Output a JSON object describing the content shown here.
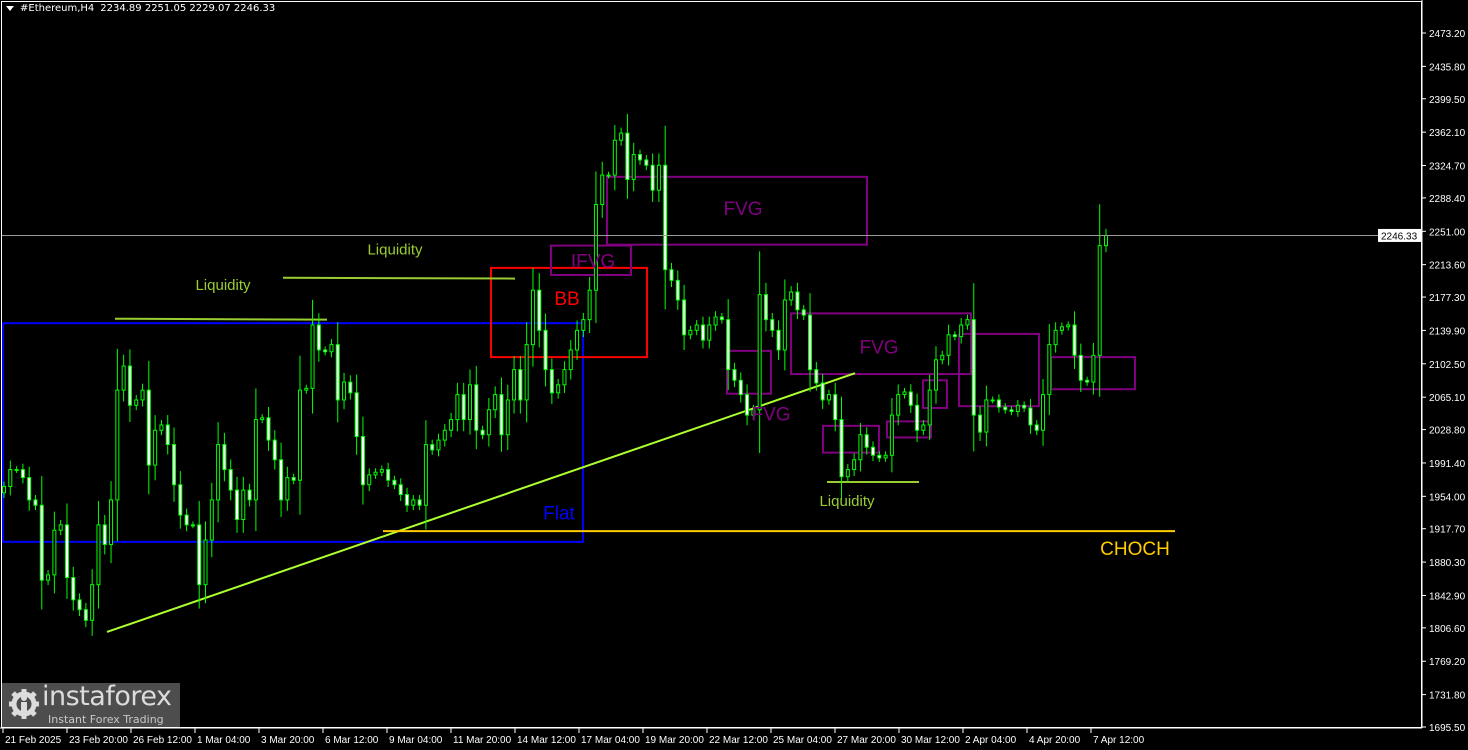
{
  "header": {
    "symbol_tf": "#Ethereum,H4",
    "ohlc": "2234.89 2251.05 2229.07 2246.33"
  },
  "watermark": {
    "brand": "instaforex",
    "tagline": "Instant Forex Trading"
  },
  "colors": {
    "background": "#000000",
    "candle": "#00ff00",
    "axis": "#ffffff",
    "current_price_line": "#9a9a9a",
    "liquidity": "#9acd32",
    "trendline": "#adff2f",
    "fvg": "#800080",
    "bb": "#ff0000",
    "flat": "#0000ff",
    "choch": "#ffcc00"
  },
  "chart_data": {
    "type": "candlestick",
    "symbol": "#Ethereum",
    "timeframe": "H4",
    "last_bar": {
      "open": 2234.89,
      "high": 2251.05,
      "low": 2229.07,
      "close": 2246.33
    },
    "current_price": "2246.33",
    "ylim": [
      1695.5,
      2473.2
    ],
    "grid": false,
    "y_ticks": [
      "2473.20",
      "2435.80",
      "2399.50",
      "2362.10",
      "2324.70",
      "2288.40",
      "2251.00",
      "2213.60",
      "2177.30",
      "2139.90",
      "2102.50",
      "2065.10",
      "2028.80",
      "1991.40",
      "1954.00",
      "1917.70",
      "1880.30",
      "1842.90",
      "1806.60",
      "1769.20",
      "1731.80",
      "1695.50"
    ],
    "x_ticks": [
      "21 Feb 2025",
      "23 Feb 20:00",
      "26 Feb 12:00",
      "1 Mar 04:00",
      "3 Mar 20:00",
      "6 Mar 12:00",
      "9 Mar 04:00",
      "11 Mar 20:00",
      "14 Mar 12:00",
      "17 Mar 04:00",
      "19 Mar 20:00",
      "22 Mar 12:00",
      "25 Mar 04:00",
      "27 Mar 20:00",
      "30 Mar 12:00",
      "2 Apr 04:00",
      "4 Apr 20:00",
      "7 Apr 12:00"
    ],
    "first_open": 1958,
    "closes": [
      1965,
      1984,
      1984,
      1975,
      1950,
      1944,
      1860,
      1866,
      1916,
      1922,
      1863,
      1838,
      1827,
      1815,
      1855,
      1922,
      1900,
      1950,
      2073,
      2100,
      2056,
      2062,
      2073,
      1989,
      2028,
      2034,
      2012,
      1967,
      1933,
      1922,
      1922,
      1855,
      1905,
      1950,
      2012,
      1984,
      1961,
      1928,
      1961,
      1950,
      2040,
      2042,
      2017,
      1995,
      1950,
      1975,
      1972,
      2073,
      2075,
      2146,
      2118,
      2116,
      2124,
      2062,
      2082,
      2070,
      2021,
      1967,
      1978,
      1981,
      1984,
      1972,
      1967,
      1956,
      1944,
      1950,
      1944,
      2012,
      2006,
      2017,
      2028,
      2040,
      2068,
      2040,
      2079,
      2028,
      2023,
      2051,
      2068,
      2023,
      2062,
      2096,
      2062,
      2124,
      2185,
      2140,
      2096,
      2070,
      2079,
      2096,
      2118,
      2140,
      2152,
      2185,
      2281,
      2314,
      2314,
      2353,
      2361,
      2309,
      2337,
      2331,
      2325,
      2297,
      2325,
      2208,
      2196,
      2174,
      2135,
      2140,
      2146,
      2129,
      2146,
      2155,
      2152,
      2096,
      2084,
      2068,
      2045,
      2051,
      2180,
      2152,
      2140,
      2118,
      2174,
      2183,
      2163,
      2157,
      2096,
      2081,
      2062,
      2068,
      2040,
      1976,
      1984,
      1995,
      2023,
      2009,
      2000,
      1997,
      2000,
      2045,
      2068,
      2071,
      2056,
      2028,
      2034,
      2073,
      2107,
      2112,
      2135,
      2133,
      2146,
      2152,
      2045,
      2026,
      2062,
      2062,
      2054,
      2051,
      2049,
      2056,
      2053,
      2034,
      2028,
      2068,
      2124,
      2140,
      2144,
      2146,
      2112,
      2084,
      2082,
      2112,
      2234.89,
      2246.33
    ],
    "annotations": {
      "boxes": [
        {
          "name": "flat-box",
          "t1": "2025-02-21 04:00",
          "t2": "2025-03-17 08:00",
          "p1": 2148,
          "p2": 1903,
          "color": "#0000ff"
        },
        {
          "name": "bb-box",
          "t1": "2025-03-13 12:00",
          "t2": "2025-03-20 00:00",
          "p1": 2210,
          "p2": 2110,
          "color": "#ff0000"
        },
        {
          "name": "ifvg-box",
          "t1": "2025-03-16 00:00",
          "t2": "2025-03-19 08:00",
          "p1": 2235,
          "p2": 2202,
          "color": "#800080"
        },
        {
          "name": "fvg-box-upper",
          "t1": "2025-03-18 08:00",
          "t2": "2025-03-29 04:00",
          "p1": 2312,
          "p2": 2236,
          "color": "#800080"
        },
        {
          "name": "fvg-box-small",
          "t1": "2025-03-23 08:00",
          "t2": "2025-03-25 04:00",
          "p1": 2117,
          "p2": 2069,
          "color": "#800080"
        },
        {
          "name": "fvg-box-mid",
          "t1": "2025-03-26 00:00",
          "t2": "2025-04-02 12:00",
          "p1": 2159,
          "p2": 2091,
          "color": "#800080"
        },
        {
          "name": "fvg-box-a",
          "t1": "2025-03-27 08:00",
          "t2": "2025-03-29 16:00",
          "p1": 2033,
          "p2": 2003,
          "color": "#800080"
        },
        {
          "name": "fvg-box-b",
          "t1": "2025-03-30 00:00",
          "t2": "2025-03-31 20:00",
          "p1": 2038,
          "p2": 2020,
          "color": "#800080"
        },
        {
          "name": "fvg-box-c",
          "t1": "2025-03-31 12:00",
          "t2": "2025-04-01 12:00",
          "p1": 2084,
          "p2": 2053,
          "color": "#800080"
        },
        {
          "name": "fvg-box-d",
          "t1": "2025-04-02 00:00",
          "t2": "2025-04-05 08:00",
          "p1": 2136,
          "p2": 2055,
          "color": "#800080"
        },
        {
          "name": "fvg-box-e",
          "t1": "2025-04-05 20:00",
          "t2": "2025-04-09 08:00",
          "p1": 2110,
          "p2": 2074,
          "color": "#800080"
        }
      ],
      "lines": [
        {
          "name": "trendline",
          "t1": "2025-02-25 12:00",
          "p1": 1802,
          "t2": "2025-03-28 16:00",
          "p2": 2092,
          "color": "#adff2f"
        },
        {
          "name": "liquidity-line-1",
          "t1": "2025-02-25 20:00",
          "p1": 2153,
          "t2": "2025-03-06 16:00",
          "p2": 2152,
          "color": "#9acd32"
        },
        {
          "name": "liquidity-line-2",
          "t1": "2025-03-04 20:00",
          "p1": 2199,
          "t2": "2025-03-14 12:00",
          "p2": 2198,
          "color": "#9acd32"
        },
        {
          "name": "liquidity-line-3",
          "t1": "2025-03-27 12:00",
          "p1": 1970,
          "t2": "2025-03-31 08:00",
          "p2": 1970,
          "color": "#9acd32"
        },
        {
          "name": "choch-line",
          "t1": "2025-03-09 00:00",
          "p1": 1915,
          "t2": "2025-04-11 00:00",
          "p2": 1915,
          "color": "#ffcc00"
        }
      ],
      "labels": [
        {
          "name": "label-flat",
          "text": "Flat",
          "t": "2025-03-16 08:00",
          "p": 1936,
          "color": "#0000ff"
        },
        {
          "name": "label-bb",
          "text": "BB",
          "t": "2025-03-16 16:00",
          "p": 2176,
          "color": "#ff0000"
        },
        {
          "name": "label-ifvg",
          "text": "IFVG",
          "t": "2025-03-17 18:00",
          "p": 2218,
          "color": "#800080"
        },
        {
          "name": "label-fvg-upper",
          "text": "FVG",
          "t": "2025-03-24 00:00",
          "p": 2277,
          "color": "#800080"
        },
        {
          "name": "label-fvg-small",
          "text": "FVG",
          "t": "2025-03-25 04:00",
          "p": 2047,
          "color": "#800080"
        },
        {
          "name": "label-fvg-mid",
          "text": "FVG",
          "t": "2025-03-29 16:00",
          "p": 2122,
          "color": "#800080"
        },
        {
          "name": "label-liquidity-1",
          "text": "Liquidity",
          "t": "2025-03-02 08:00",
          "p": 2193,
          "color": "#9acd32"
        },
        {
          "name": "label-liquidity-2",
          "text": "Liquidity",
          "t": "2025-03-09 12:00",
          "p": 2233,
          "color": "#9acd32"
        },
        {
          "name": "label-liquidity-3",
          "text": "Liquidity",
          "t": "2025-03-28 08:00",
          "p": 1951,
          "color": "#9acd32"
        },
        {
          "name": "label-choch",
          "text": "CHOCH",
          "t": "2025-04-09 08:00",
          "p": 1896,
          "color": "#ffcc00"
        }
      ]
    }
  }
}
